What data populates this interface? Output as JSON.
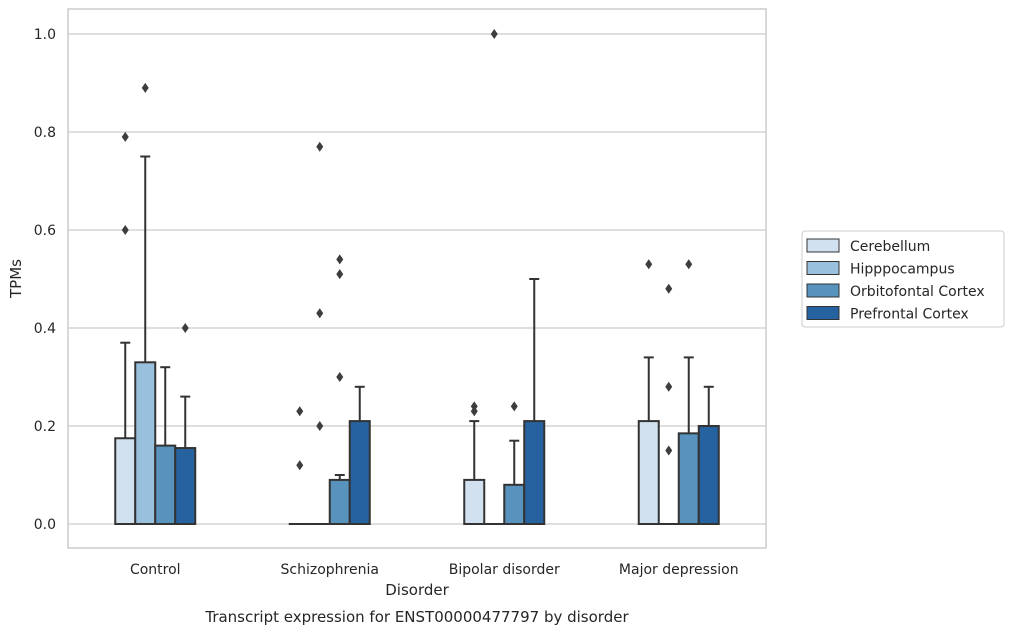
{
  "chart_data": {
    "type": "bar",
    "title": "Transcript expression for ENST00000477797 by disorder",
    "xlabel": "Disorder",
    "ylabel": "TPMs",
    "ylim": [
      -0.05,
      1.05
    ],
    "yticks": [
      "0.0",
      "0.2",
      "0.4",
      "0.6",
      "0.8",
      "1.0"
    ],
    "grid": true,
    "legend_position": "right",
    "categories": [
      "Control",
      "Schizophrenia",
      "Bipolar disorder",
      "Major depression"
    ],
    "series": [
      {
        "name": "Cerebellum",
        "color": "#d1e1f0",
        "values": [
          0.175,
          0.0,
          0.09,
          0.21
        ],
        "error_upper": [
          0.37,
          null,
          0.21,
          0.34
        ],
        "outliers": [
          [
            0.6,
            0.79
          ],
          [
            0.12,
            0.23
          ],
          [
            0.23,
            0.24
          ],
          [
            0.53
          ]
        ]
      },
      {
        "name": "Hipppocampus",
        "color": "#99c0dc",
        "values": [
          0.33,
          0.0,
          0.0,
          0.0
        ],
        "error_upper": [
          0.75,
          null,
          null,
          null
        ],
        "outliers": [
          [
            0.89
          ],
          [
            0.2,
            0.43,
            0.77
          ],
          [
            1.0
          ],
          [
            0.15,
            0.28,
            0.48
          ]
        ]
      },
      {
        "name": "Orbitofontal Cortex",
        "color": "#5793bd",
        "values": [
          0.16,
          0.09,
          0.08,
          0.185
        ],
        "error_upper": [
          0.32,
          0.1,
          0.17,
          0.34
        ],
        "outliers": [
          [],
          [
            0.3,
            0.51,
            0.54
          ],
          [
            0.24
          ],
          [
            0.53
          ]
        ]
      },
      {
        "name": "Prefrontal Cortex",
        "color": "#2762a0",
        "values": [
          0.155,
          0.21,
          0.21,
          0.2
        ],
        "error_upper": [
          0.26,
          0.28,
          0.5,
          0.28
        ],
        "outliers": [
          [
            0.4
          ],
          [],
          [],
          []
        ]
      }
    ]
  }
}
